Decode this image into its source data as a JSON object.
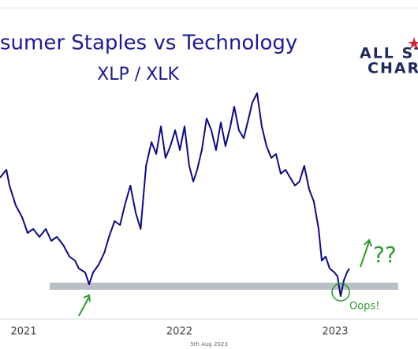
{
  "chart_data": {
    "type": "line",
    "title": "sumer Staples vs Technology",
    "subtitle": "XLP / XLK",
    "logo": {
      "line1": "ALL ST",
      "line2": "CHAR"
    },
    "annotations": {
      "question": "??",
      "oops": "Oops!"
    },
    "footer": "5th Aug 2023",
    "color": "#0c0c80",
    "xlim": [
      2021.348,
      2024.032
    ],
    "xticks": [
      {
        "value": 2021.5,
        "label": "2021"
      },
      {
        "value": 2022.5,
        "label": "2022"
      },
      {
        "value": 2023.5,
        "label": "2023"
      }
    ],
    "ylim": [
      0,
      280
    ],
    "x": [
      2021.348,
      2021.389,
      2021.409,
      2021.449,
      2021.49,
      2021.525,
      2021.561,
      2021.601,
      2021.642,
      2021.677,
      2021.713,
      2021.753,
      2021.794,
      2021.829,
      2021.854,
      2021.895,
      2021.92,
      2021.946,
      2021.982,
      2022.018,
      2022.048,
      2022.084,
      2022.119,
      2022.149,
      2022.185,
      2022.22,
      2022.251,
      2022.286,
      2022.321,
      2022.351,
      2022.381,
      2022.411,
      2022.442,
      2022.473,
      2022.503,
      2022.533,
      2022.563,
      2022.589,
      2022.614,
      2022.644,
      2022.675,
      2022.705,
      2022.735,
      2022.766,
      2022.796,
      2022.827,
      2022.852,
      2022.882,
      2022.913,
      2022.944,
      2022.968,
      2022.999,
      2023.029,
      2023.059,
      2023.09,
      2023.12,
      2023.151,
      2023.181,
      2023.211,
      2023.242,
      2023.271,
      2023.302,
      2023.333,
      2023.363,
      2023.394,
      2023.414,
      2023.439,
      2023.465,
      2023.495,
      2023.515,
      2023.535,
      2023.556,
      2023.576,
      2023.591
    ],
    "values": [
      155,
      165,
      145,
      120,
      105,
      85,
      90,
      80,
      90,
      75,
      80,
      70,
      55,
      50,
      40,
      35,
      20,
      35,
      45,
      60,
      80,
      100,
      95,
      120,
      145,
      110,
      90,
      170,
      200,
      185,
      220,
      180,
      195,
      215,
      190,
      220,
      170,
      150,
      165,
      190,
      230,
      215,
      190,
      225,
      195,
      220,
      245,
      215,
      205,
      230,
      250,
      262,
      220,
      195,
      180,
      185,
      160,
      165,
      155,
      145,
      150,
      170,
      140,
      125,
      90,
      50,
      55,
      40,
      35,
      30,
      5,
      25,
      35,
      40
    ]
  }
}
